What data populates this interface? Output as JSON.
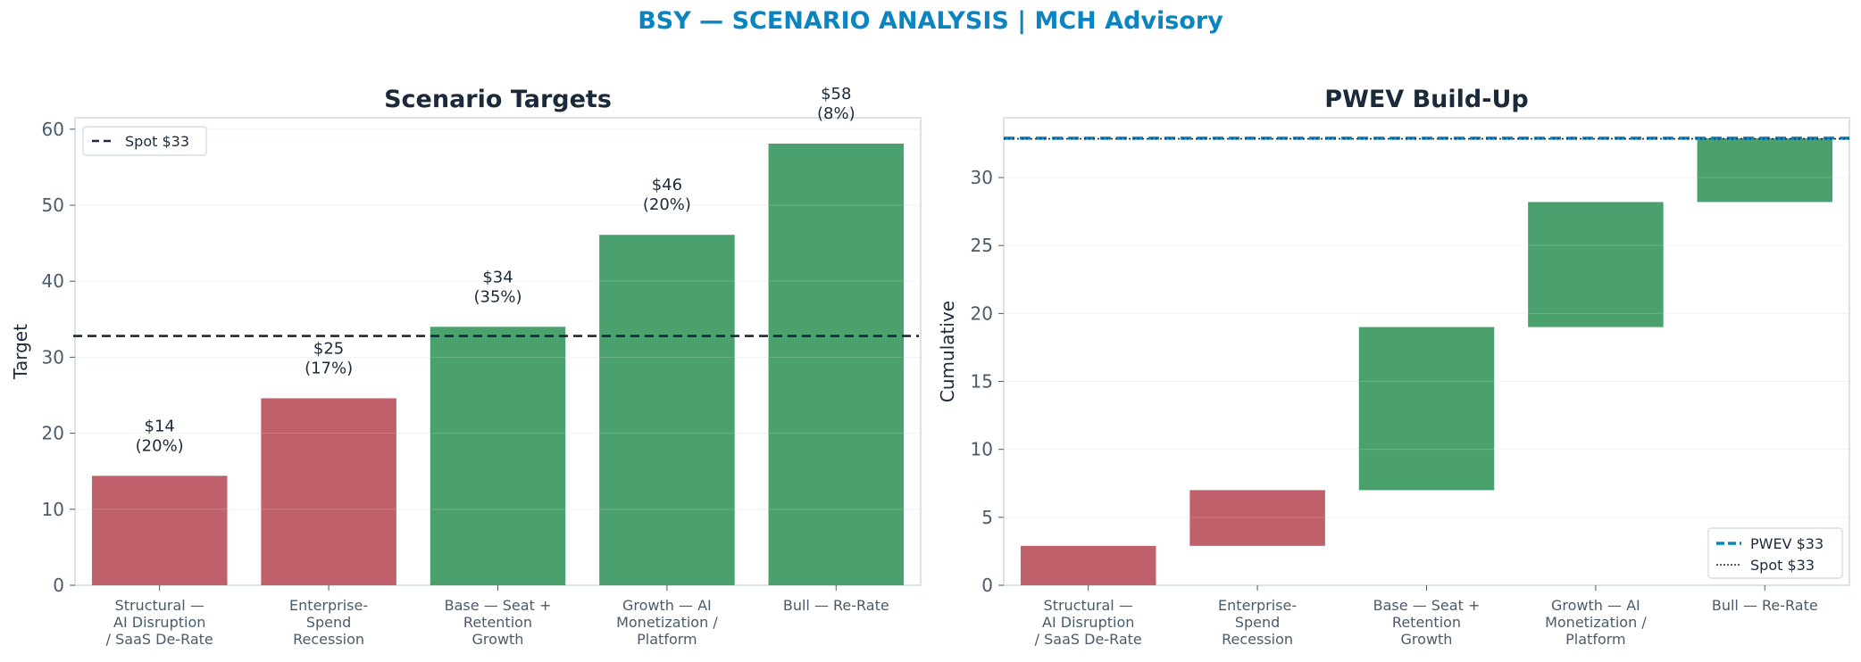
{
  "page_title": "BSY — SCENARIO ANALYSIS | MCH Advisory",
  "colors": {
    "title": "#0a85c2",
    "ink": "#1b2a3a",
    "tick": "#4a5b6b",
    "frame": "#cfd8e0",
    "grid": "#edf1f4",
    "negative": "#c0606b",
    "positive": "#4aa16d",
    "pwev": "#0a85c2",
    "spot": "#1b2a3a"
  },
  "chart_data": [
    {
      "type": "bar",
      "title": "Scenario Targets",
      "xlabel": "",
      "ylabel": "Target",
      "ylim": [
        0,
        61.5
      ],
      "yticks": [
        "0",
        "10",
        "20",
        "30",
        "40",
        "50",
        "60"
      ],
      "categories": [
        "Structural — AI Disruption / SaaS De-Rate",
        "Enterprise-Spend Recession",
        "Base — Seat + Retention Growth",
        "Growth — AI Monetization / Platform",
        "Bull — Re-Rate"
      ],
      "category_lines": [
        [
          "Structural —",
          "AI Disruption",
          "/ SaaS De-Rate"
        ],
        [
          "Enterprise-",
          "Spend",
          "Recession"
        ],
        [
          "Base — Seat +",
          "Retention",
          "Growth"
        ],
        [
          "Growth — AI",
          "Monetization /",
          "Platform"
        ],
        [
          "Bull — Re-Rate"
        ]
      ],
      "values": [
        14.4,
        24.6,
        34.0,
        46.1,
        58.1
      ],
      "bar_colors": [
        "negative",
        "negative",
        "positive",
        "positive",
        "positive"
      ],
      "data_labels": [
        [
          "$14",
          "(20%)"
        ],
        [
          "$25",
          "(17%)"
        ],
        [
          "$34",
          "(35%)"
        ],
        [
          "$46",
          "(20%)"
        ],
        [
          "$58",
          "(8%)"
        ]
      ],
      "reference_line": {
        "name": "Spot $33",
        "value": 32.8,
        "style": "dashed"
      },
      "legend": {
        "position": "top-left",
        "entries": [
          "Spot $33"
        ]
      },
      "grid": true
    },
    {
      "type": "waterfall",
      "title": "PWEV Build-Up",
      "xlabel": "",
      "ylabel": "Cumulative",
      "ylim": [
        0,
        34.4
      ],
      "yticks": [
        "0",
        "5",
        "10",
        "15",
        "20",
        "25",
        "30"
      ],
      "categories": [
        "Structural — AI Disruption / SaaS De-Rate",
        "Enterprise-Spend Recession",
        "Base — Seat + Retention Growth",
        "Growth — AI Monetization / Platform",
        "Bull — Re-Rate"
      ],
      "category_lines": [
        [
          "Structural —",
          "AI Disruption",
          "/ SaaS De-Rate"
        ],
        [
          "Enterprise-",
          "Spend",
          "Recession"
        ],
        [
          "Base — Seat +",
          "Retention",
          "Growth"
        ],
        [
          "Growth — AI",
          "Monetization /",
          "Platform"
        ],
        [
          "Bull — Re-Rate"
        ]
      ],
      "segments": [
        {
          "start": 0,
          "end": 2.9
        },
        {
          "start": 2.9,
          "end": 7.0
        },
        {
          "start": 7.0,
          "end": 19.0
        },
        {
          "start": 19.0,
          "end": 28.2
        },
        {
          "start": 28.2,
          "end": 32.9
        }
      ],
      "bar_colors": [
        "negative",
        "negative",
        "positive",
        "positive",
        "positive"
      ],
      "reference_lines": [
        {
          "name": "PWEV $33",
          "value": 32.9,
          "style": "dashed",
          "color": "pwev"
        },
        {
          "name": "Spot $33",
          "value": 32.85,
          "style": "dotted",
          "color": "spot"
        }
      ],
      "legend": {
        "position": "bottom-right",
        "entries": [
          "PWEV $33",
          "Spot $33"
        ]
      },
      "grid": true
    }
  ]
}
